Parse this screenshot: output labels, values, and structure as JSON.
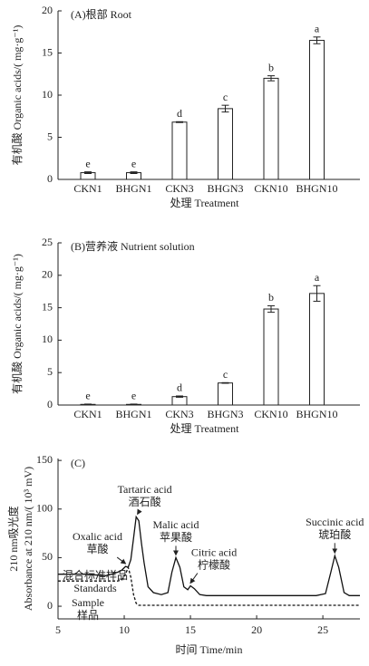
{
  "chart_data": [
    {
      "type": "bar",
      "title": "(A)根部 Root",
      "ylabel": "有机酸 Organic acids/( mg·g⁻¹)",
      "xlabel": "处理 Treatment",
      "categories": [
        "CKN1",
        "BHGN1",
        "CKN3",
        "BHGN3",
        "CKN10",
        "BHGN10"
      ],
      "values": [
        0.8,
        0.8,
        6.8,
        8.4,
        12.0,
        16.5
      ],
      "errors": [
        0.1,
        0.1,
        0.05,
        0.4,
        0.3,
        0.4
      ],
      "letters": [
        "e",
        "e",
        "d",
        "c",
        "b",
        "a"
      ],
      "color": "#ffffff",
      "ylim": [
        0,
        20
      ],
      "yticks": [
        0,
        5,
        10,
        15,
        20
      ]
    },
    {
      "type": "bar",
      "title": "(B)营养液 Nutrient solution",
      "ylabel": "有机酸 Organic acids/( mg·g⁻¹)",
      "xlabel": "处理 Treatment",
      "categories": [
        "CKN1",
        "BHGN1",
        "CKN3",
        "BHGN3",
        "CKN10",
        "BHGN10"
      ],
      "values": [
        0.1,
        0.1,
        1.3,
        3.4,
        14.8,
        17.2
      ],
      "errors": [
        0.05,
        0.05,
        0.1,
        0.05,
        0.5,
        1.2
      ],
      "letters": [
        "e",
        "e",
        "d",
        "c",
        "b",
        "a"
      ],
      "color": "#ffffff",
      "ylim": [
        0,
        25
      ],
      "yticks": [
        0,
        5,
        10,
        15,
        20,
        25
      ]
    },
    {
      "type": "line",
      "title": "(C)",
      "ylabel": [
        "210 nm吸光度",
        "Absorbance at 210 nm/( 10³ mV)"
      ],
      "xlabel": "时间 Time/min",
      "x": [
        5,
        6,
        7,
        8,
        8.5,
        9,
        9.5,
        9.8,
        10.1,
        10.3,
        10.5,
        10.7,
        10.9,
        11.1,
        11.3,
        11.5,
        11.8,
        12.2,
        12.8,
        13.3,
        13.6,
        13.9,
        14.2,
        14.5,
        14.8,
        15.0,
        15.3,
        15.7,
        16.2,
        17,
        19,
        21,
        23,
        24.5,
        25.2,
        25.6,
        25.9,
        26.2,
        26.6,
        27.0,
        27.8
      ],
      "series": [
        {
          "name": [
            "混合标准样品",
            "Standards"
          ],
          "color": "#111111",
          "style": "solid",
          "values": [
            33,
            33,
            33,
            32,
            31,
            33,
            35,
            37,
            41,
            40,
            48,
            70,
            92,
            88,
            65,
            45,
            20,
            14,
            12,
            14,
            35,
            50,
            40,
            20,
            17,
            21,
            18,
            12,
            11,
            11,
            11,
            11,
            11,
            11,
            13,
            35,
            52,
            40,
            14,
            11,
            11
          ]
        },
        {
          "name": [
            "Sample",
            "样品"
          ],
          "color": "#111111",
          "style": "dashed",
          "values": [
            26,
            26,
            26,
            26,
            26,
            26,
            26,
            27,
            33,
            40,
            30,
            12,
            3,
            1,
            1,
            1,
            1,
            1,
            1,
            1,
            1,
            1,
            1,
            1,
            1,
            1,
            1,
            1,
            1,
            1,
            1,
            1,
            1,
            1,
            1,
            1,
            1,
            1,
            1,
            1,
            1
          ]
        }
      ],
      "annotations": [
        {
          "text": [
            "Tartaric acid",
            "酒石酸"
          ],
          "x": 11.0,
          "y": 92
        },
        {
          "text": [
            "Oxalic acid",
            "草酸"
          ],
          "x": 10.1,
          "y": 41
        },
        {
          "text": [
            "Malic acid",
            "苹果酸"
          ],
          "x": 13.9,
          "y": 50
        },
        {
          "text": [
            "Citric acid",
            "柠檬酸"
          ],
          "x": 15.0,
          "y": 21
        },
        {
          "text": [
            "Succinic acid",
            "琥珀酸"
          ],
          "x": 25.9,
          "y": 52
        }
      ],
      "xlim": [
        5,
        27.8
      ],
      "xticks": [
        5,
        10,
        15,
        20,
        25
      ],
      "ylim": [
        -13,
        152
      ],
      "yticks": [
        0,
        50,
        100,
        150
      ]
    }
  ]
}
